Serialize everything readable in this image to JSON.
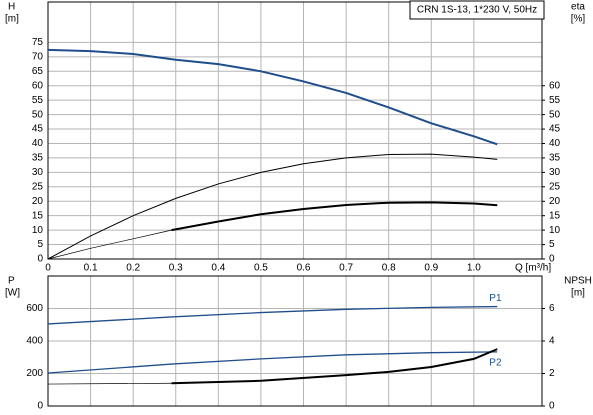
{
  "chart_data": [
    {
      "type": "line",
      "title": "CRN 1S-13, 1*230 V, 50Hz",
      "y_label": "H",
      "y_unit": "[m]",
      "y2_label": "eta",
      "y2_unit": "[%]",
      "x_label": "Q [m³/h]",
      "xlim": [
        0,
        1.16
      ],
      "xticks": [
        0,
        0.1,
        0.2,
        0.3,
        0.4,
        0.5,
        0.6,
        0.7,
        0.8,
        0.9,
        {
          "value": 1,
          "label": "1.0"
        }
      ],
      "ylim": [
        0,
        89
      ],
      "yticks": [
        0,
        5,
        10,
        15,
        20,
        25,
        30,
        35,
        40,
        45,
        50,
        55,
        60,
        65,
        70,
        75
      ],
      "y2lim": [
        0,
        89
      ],
      "y2ticks": [
        0,
        5,
        10,
        15,
        20,
        25,
        30,
        35,
        40,
        45,
        50,
        55,
        60
      ],
      "grid": true,
      "series": [
        {
          "color": "#1f4e8c",
          "line_width": 2,
          "x": [
            0,
            0.1,
            0.2,
            0.3,
            0.4,
            0.5,
            0.6,
            0.7,
            0.8,
            0.9,
            1.0,
            1.055
          ],
          "values": [
            72.4,
            72,
            71,
            69,
            67.5,
            65,
            61.5,
            57.5,
            52.5,
            47,
            42.5,
            39.7
          ]
        },
        {
          "color": "#000000",
          "line_width": 1,
          "axis": "y2",
          "x": [
            0,
            0.1,
            0.2,
            0.3,
            0.4,
            0.5,
            0.6,
            0.7,
            0.8,
            0.9,
            1.0,
            1.055
          ],
          "values": [
            0,
            8,
            15,
            21,
            26,
            30,
            33,
            35,
            36.2,
            36.3,
            35.3,
            34.5
          ]
        },
        {
          "color": "#000000",
          "line_width": 0.7,
          "axis": "y2",
          "x": [
            0,
            0.1,
            0.2,
            0.29
          ],
          "values": [
            0,
            3.7,
            7,
            10
          ]
        },
        {
          "color": "#000000",
          "line_width": 2,
          "axis": "y2",
          "x": [
            0.29,
            0.4,
            0.5,
            0.6,
            0.7,
            0.8,
            0.9,
            1.0,
            1.055
          ],
          "values": [
            10,
            13,
            15.5,
            17.3,
            18.7,
            19.5,
            19.6,
            19.2,
            18.6
          ]
        }
      ]
    },
    {
      "type": "line",
      "y_label": "P",
      "y_unit": "[W]",
      "y2_label": "NPSH",
      "y2_unit": "[m]",
      "xlim": [
        0,
        1.16
      ],
      "xticks": [
        0,
        0.1,
        0.2,
        0.3,
        0.4,
        0.5,
        0.6,
        0.7,
        0.8,
        0.9,
        1
      ],
      "ylim": [
        0,
        800
      ],
      "yticks": [
        0,
        200,
        400,
        600
      ],
      "y2lim": [
        0,
        8
      ],
      "y2ticks": [
        0,
        2,
        4,
        6
      ],
      "grid": true,
      "series": [
        {
          "name": "P1",
          "color": "#1f4e8c",
          "line_width": 1.3,
          "label_side": "above",
          "x": [
            0,
            0.29,
            0.5,
            0.7,
            0.9,
            1.055
          ],
          "values": [
            505,
            548,
            575,
            595,
            607,
            612
          ]
        },
        {
          "name": "P2",
          "color": "#1f4e8c",
          "line_width": 1.3,
          "label_side": "below",
          "x": [
            0,
            0.29,
            0.5,
            0.7,
            0.9,
            1.055
          ],
          "values": [
            203,
            258,
            290,
            315,
            328,
            333
          ]
        },
        {
          "color": "#000000",
          "line_width": 0.7,
          "axis": "y2",
          "x": [
            0,
            0.29
          ],
          "values": [
            1.35,
            1.4
          ]
        },
        {
          "color": "#000000",
          "line_width": 2,
          "axis": "y2",
          "x": [
            0.29,
            0.5,
            0.7,
            0.8,
            0.9,
            1.0,
            1.055
          ],
          "values": [
            1.4,
            1.55,
            1.9,
            2.1,
            2.4,
            2.9,
            3.5
          ]
        }
      ]
    }
  ]
}
